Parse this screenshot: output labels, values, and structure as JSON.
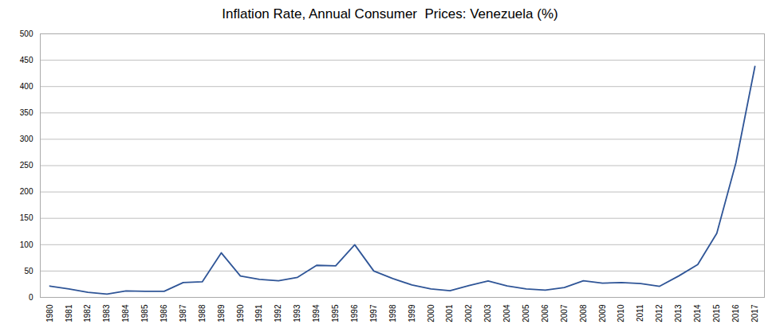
{
  "chart_data": {
    "type": "line",
    "title": "Inflation Rate, Annual Consumer  Prices: Venezuela (%)",
    "x": [
      1980,
      1981,
      1982,
      1983,
      1984,
      1985,
      1986,
      1987,
      1988,
      1989,
      1990,
      1991,
      1992,
      1993,
      1994,
      1995,
      1996,
      1997,
      1998,
      1999,
      2000,
      2001,
      2002,
      2003,
      2004,
      2005,
      2006,
      2007,
      2008,
      2009,
      2010,
      2011,
      2012,
      2013,
      2014,
      2015,
      2016,
      2017
    ],
    "values": [
      21.5,
      16.0,
      9.7,
      6.3,
      12.2,
      11.4,
      11.5,
      28.1,
      29.5,
      84.5,
      40.7,
      34.2,
      31.4,
      38.1,
      60.8,
      59.9,
      99.9,
      50.0,
      35.8,
      23.6,
      16.2,
      12.5,
      22.4,
      31.1,
      21.7,
      16.0,
      13.7,
      18.7,
      31.4,
      26.9,
      28.2,
      26.1,
      21.1,
      40.6,
      62.2,
      121.7,
      254.9,
      438.1
    ],
    "color": "#2f5597",
    "xlim": [
      1979.5,
      2017.5
    ],
    "xticks": [
      1980,
      1981,
      1982,
      1983,
      1984,
      1985,
      1986,
      1987,
      1988,
      1989,
      1990,
      1991,
      1992,
      1993,
      1994,
      1995,
      1996,
      1997,
      1998,
      1999,
      2000,
      2001,
      2002,
      2003,
      2004,
      2005,
      2006,
      2007,
      2008,
      2009,
      2010,
      2011,
      2012,
      2013,
      2014,
      2015,
      2016,
      2017
    ],
    "ylim": [
      0,
      500
    ],
    "yticks": [
      0,
      50,
      100,
      150,
      200,
      250,
      300,
      350,
      400,
      450,
      500
    ],
    "grid": true
  }
}
